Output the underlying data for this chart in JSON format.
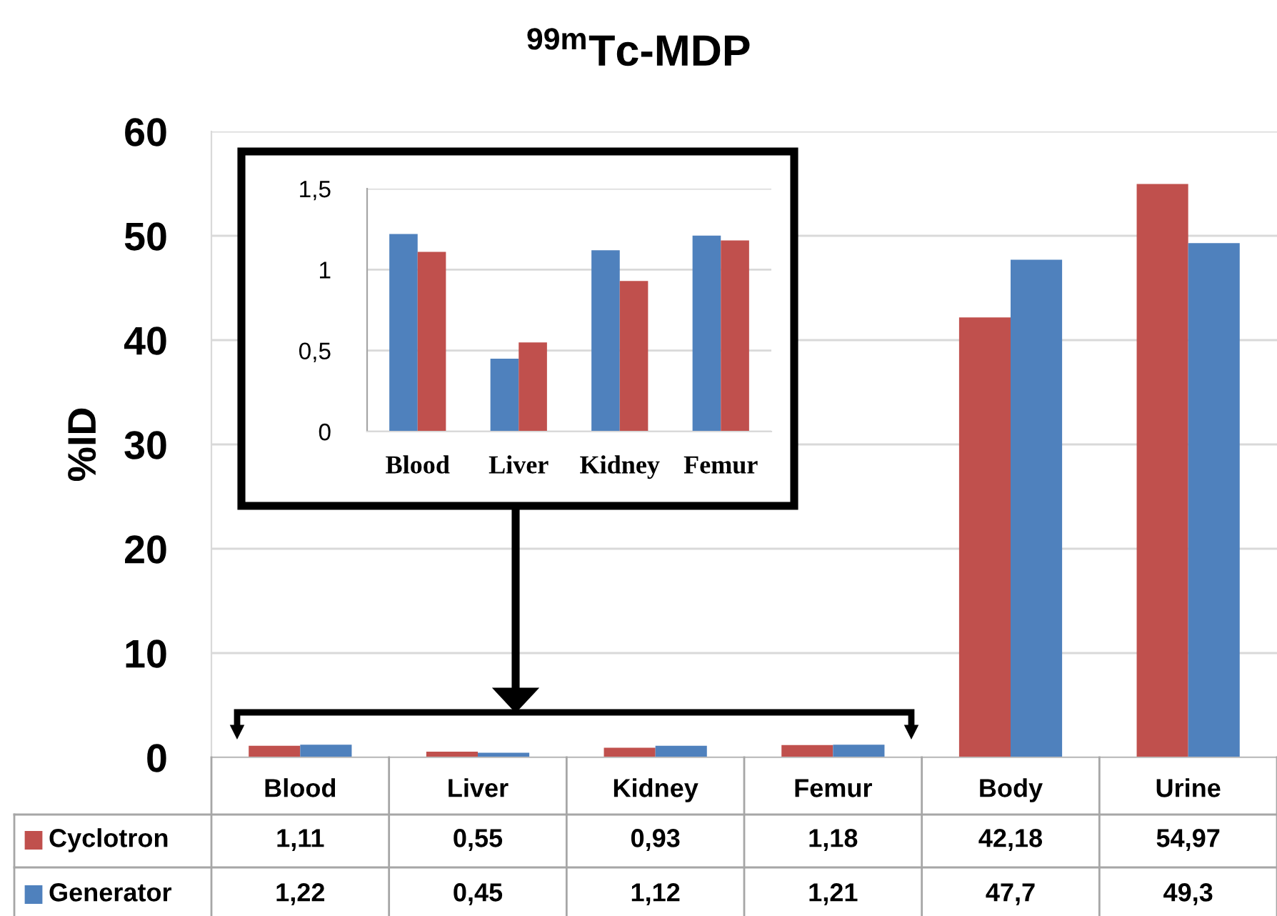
{
  "chart_data": [
    {
      "type": "bar",
      "title": "$^{99m}$Tc-MDP",
      "ylabel": "%ID",
      "categories": [
        "Blood",
        "Liver",
        "Kidney",
        "Femur",
        "Body",
        "Urine"
      ],
      "series": [
        {
          "name": "Cyclotron",
          "color": "#c0504d",
          "values": [
            1.11,
            0.55,
            0.93,
            1.18,
            42.18,
            54.97
          ],
          "value_labels": [
            "1,11",
            "0,55",
            "0,93",
            "1,18",
            "42,18",
            "54,97"
          ]
        },
        {
          "name": "Generator",
          "color": "#4f81bd",
          "values": [
            1.22,
            0.45,
            1.12,
            1.21,
            47.7,
            49.3
          ],
          "value_labels": [
            "1,22",
            "0,45",
            "1,12",
            "1,21",
            "47,7",
            "49,3"
          ]
        }
      ],
      "ylim": [
        0,
        60
      ],
      "yticks": [
        0,
        10,
        20,
        30,
        40,
        50,
        60
      ],
      "grid": "y",
      "legend": "bottom"
    },
    {
      "type": "bar",
      "categories": [
        "Blood",
        "Liver",
        "Kidney",
        "Femur"
      ],
      "series": [
        {
          "color": "#4f81bd",
          "values": [
            1.22,
            0.45,
            1.12,
            1.21
          ]
        },
        {
          "color": "#c0504d",
          "values": [
            1.11,
            0.55,
            0.93,
            1.18
          ]
        }
      ],
      "ylim": [
        0,
        1.5
      ],
      "yticks": [
        0,
        {
          "value": 0.5,
          "label": "0,5"
        },
        1,
        {
          "value": 1.5,
          "label": "1,5"
        }
      ],
      "grid": "y"
    }
  ]
}
